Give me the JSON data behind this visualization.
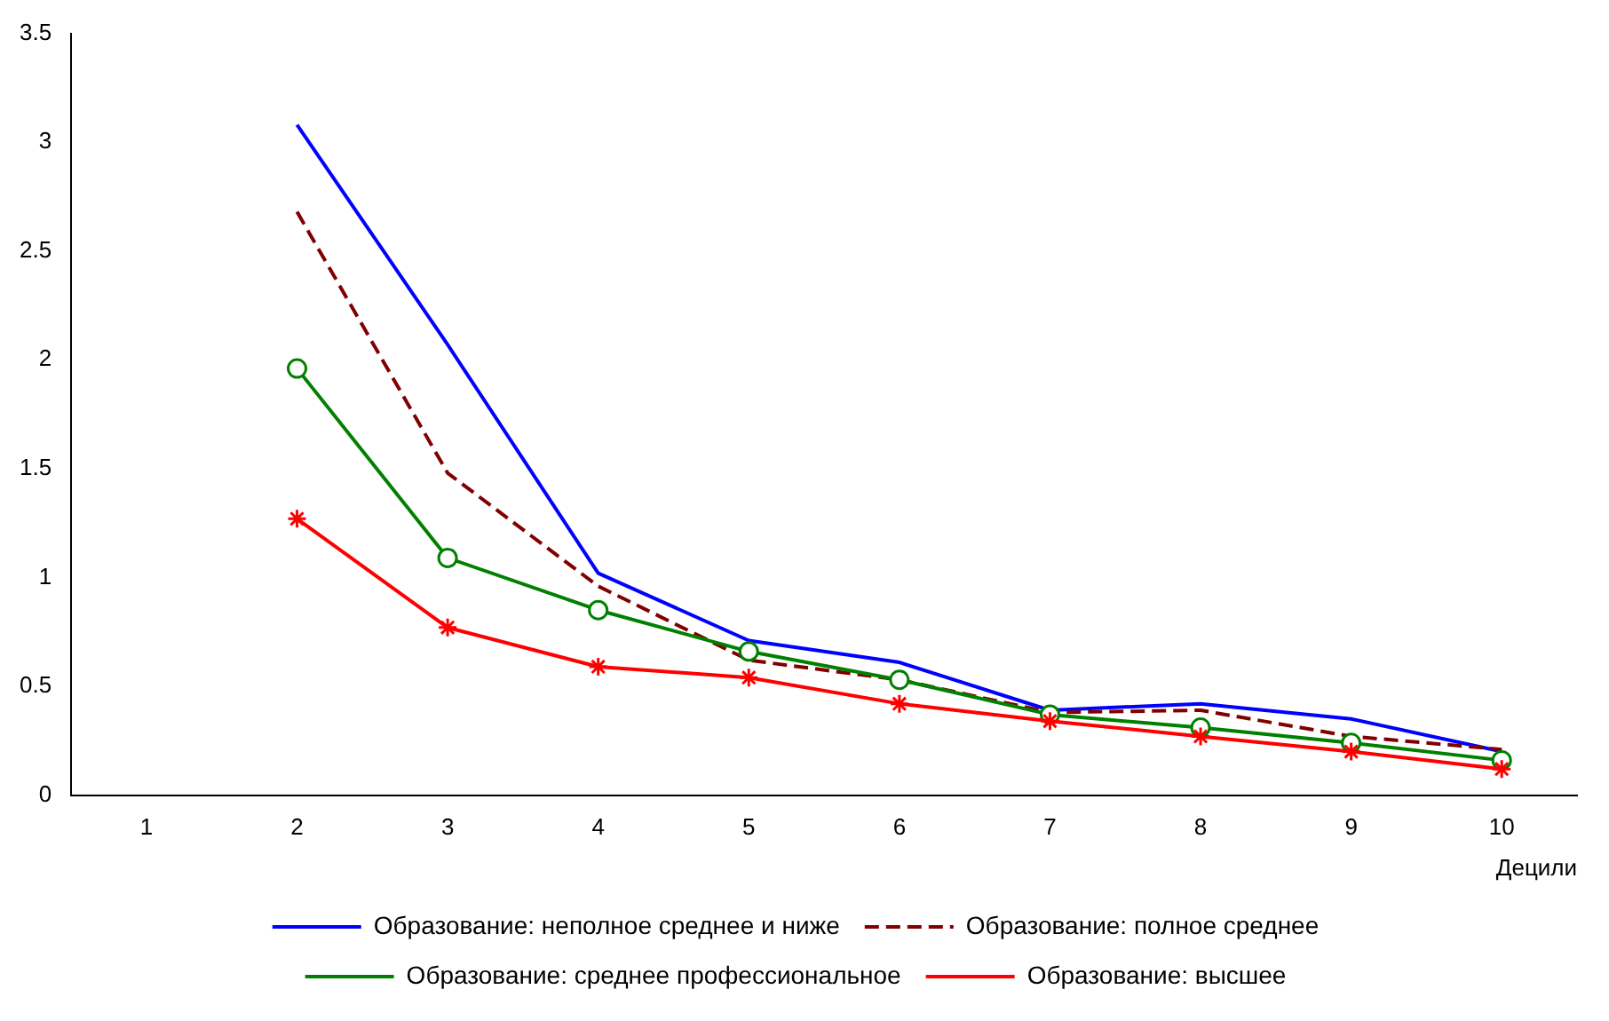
{
  "chart_data": {
    "type": "line",
    "xlabel": "Децили",
    "categories": [
      "1",
      "2",
      "3",
      "4",
      "5",
      "6",
      "7",
      "8",
      "9",
      "10"
    ],
    "ylim": [
      0,
      3.5
    ],
    "yticks": [
      0,
      0.5,
      1,
      1.5,
      2,
      2.5,
      3,
      3.5
    ],
    "grid": false,
    "legend": "bottom",
    "series": [
      {
        "name": "Образование: неполное среднее и ниже",
        "color": "#0000ff",
        "marker": "none",
        "line_style": "solid",
        "values": [
          null,
          3.08,
          2.07,
          1.02,
          0.71,
          0.61,
          0.39,
          0.42,
          0.35,
          0.2
        ]
      },
      {
        "name": "Образование: полное среднее",
        "color": "#800000",
        "marker": "none",
        "line_style": "dashed",
        "values": [
          null,
          2.68,
          1.48,
          0.96,
          0.62,
          0.53,
          0.38,
          0.39,
          0.27,
          0.21
        ]
      },
      {
        "name": "Образование: среднее профессиональное",
        "color": "#008000",
        "marker": "circle",
        "line_style": "solid",
        "values": [
          null,
          1.96,
          1.09,
          0.85,
          0.66,
          0.53,
          0.37,
          0.31,
          0.24,
          0.16
        ]
      },
      {
        "name": "Образование: высшее",
        "color": "#ff0000",
        "marker": "cross",
        "line_style": "solid",
        "values": [
          null,
          1.27,
          0.77,
          0.59,
          0.54,
          0.42,
          0.34,
          0.27,
          0.2,
          0.12
        ]
      }
    ]
  }
}
